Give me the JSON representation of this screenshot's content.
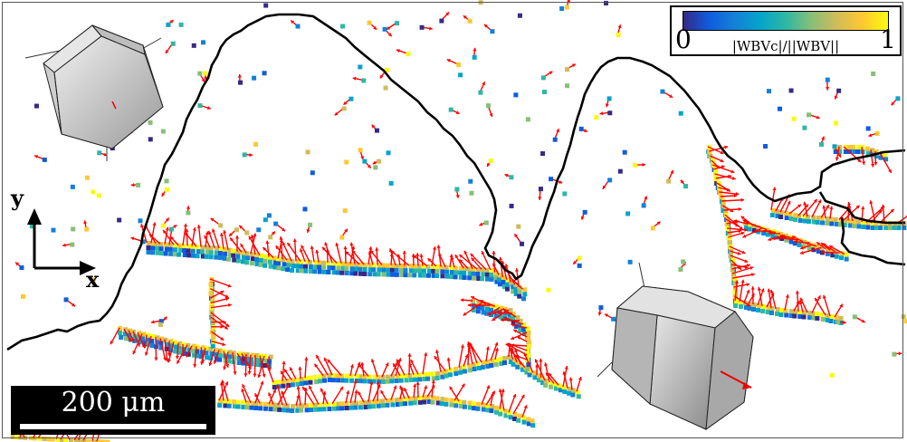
{
  "figure": {
    "colorbar": {
      "min_label": "0",
      "max_label": "1",
      "label": "|WBVc|/||WBV||",
      "gradient_colors": [
        "#352a87",
        "#0f5cdd",
        "#1481d6",
        "#06a4ca",
        "#2eb7a4",
        "#87bf77",
        "#d1bb59",
        "#fec832",
        "#f9fb0e"
      ]
    },
    "axes": {
      "y_label": "y",
      "x_label": "x"
    },
    "scalebar": {
      "label": "200 μm"
    },
    "colors": {
      "arrows": "#ff0000",
      "boundary": "#000000",
      "background": "#ffffff",
      "crystal_side": "#9a9a9a",
      "crystal_top": "#d9d9d9"
    },
    "icons": [
      "hexagonal-prism-icon",
      "hexagonal-prism-icon",
      "coordinate-axes-icon"
    ]
  }
}
